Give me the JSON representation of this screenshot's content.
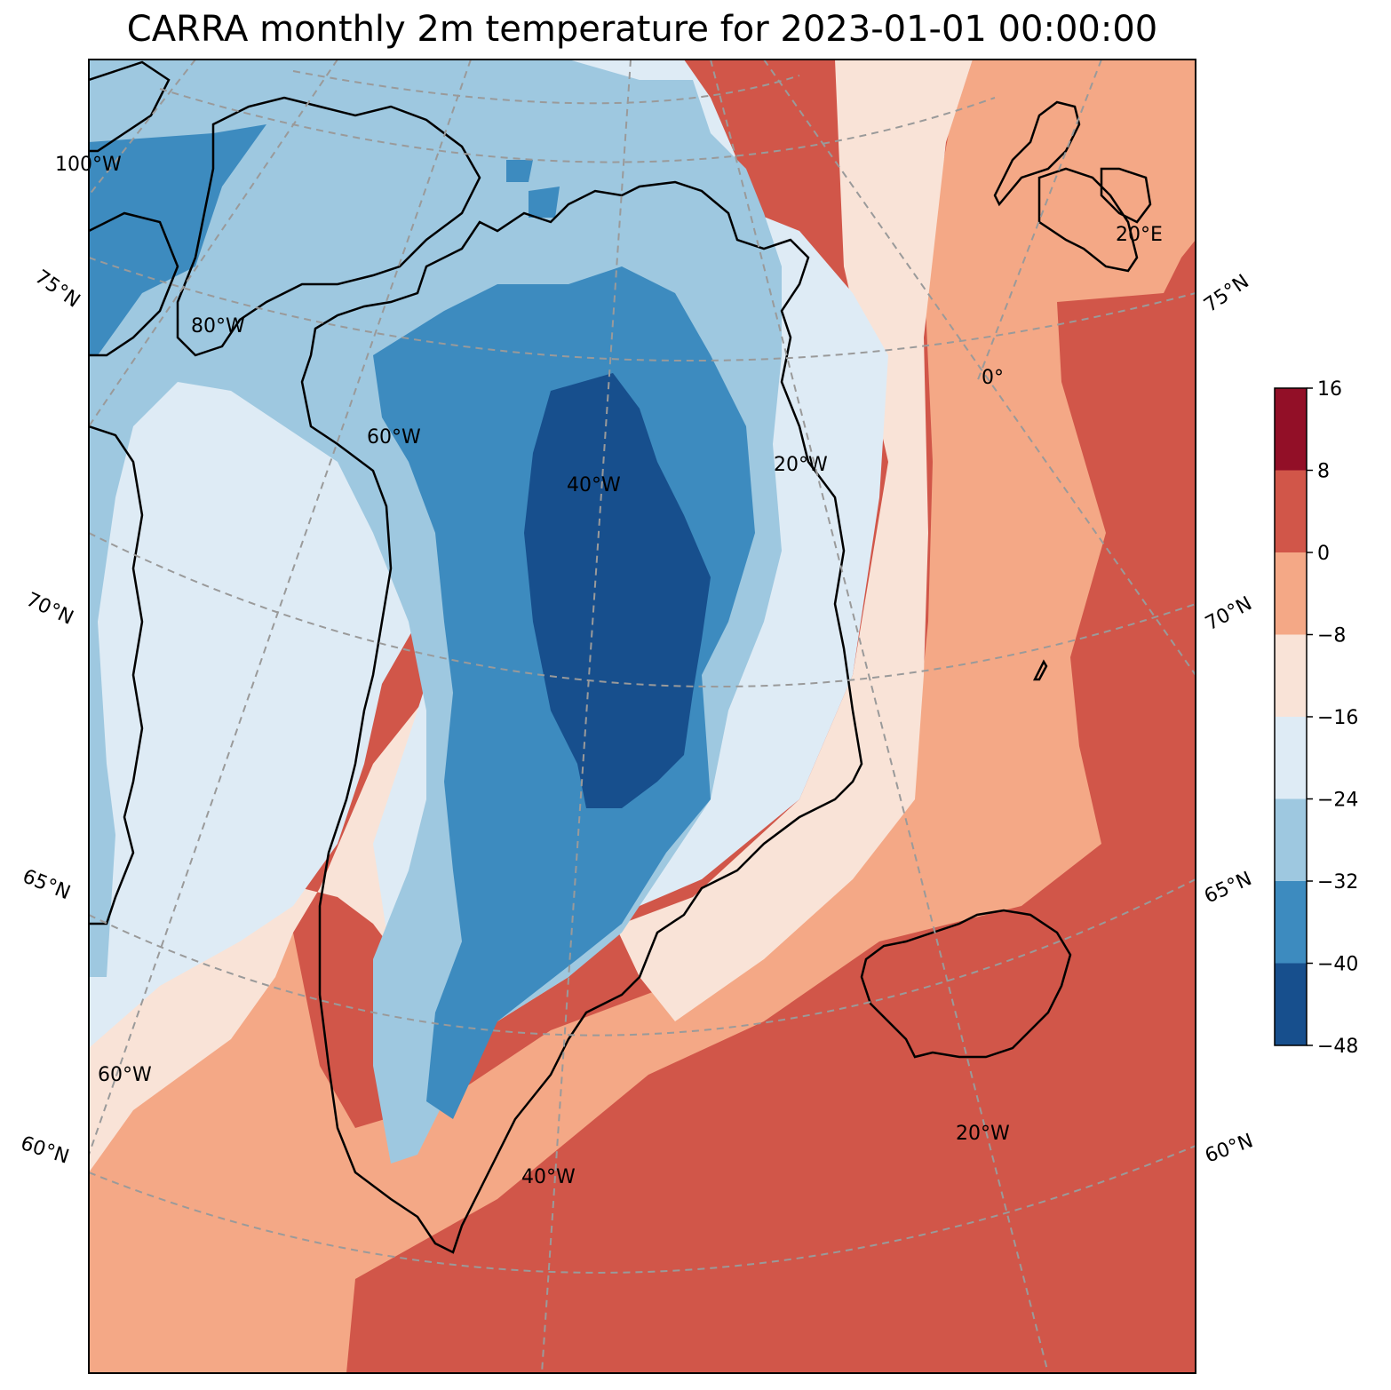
{
  "title": "CARRA monthly 2m temperature for 2023-01-01 00:00:00",
  "map": {
    "lon_labels": [
      "100°W",
      "80°W",
      "60°W",
      "40°W",
      "20°W",
      "0°",
      "20°E",
      "60°W",
      "40°W",
      "20°W"
    ],
    "lat_labels_left": [
      "75°N",
      "70°N",
      "65°N",
      "60°N"
    ],
    "lat_labels_right": [
      "75°N",
      "70°N",
      "65°N",
      "60°N"
    ]
  },
  "colorbar": {
    "ticks": [
      "16",
      "8",
      "0",
      "−8",
      "−16",
      "−24",
      "−32",
      "−40",
      "−48"
    ],
    "levels": [
      -48,
      -40,
      -32,
      -24,
      -16,
      -8,
      0,
      8,
      16
    ],
    "colors": [
      "#174f8d",
      "#3d8bbf",
      "#9ec8e0",
      "#deebf5",
      "#f9e3d7",
      "#f4a886",
      "#d15649",
      "#920f27"
    ]
  },
  "colors": {
    "frame": "#000000",
    "graticule": "#9a9a9a"
  }
}
